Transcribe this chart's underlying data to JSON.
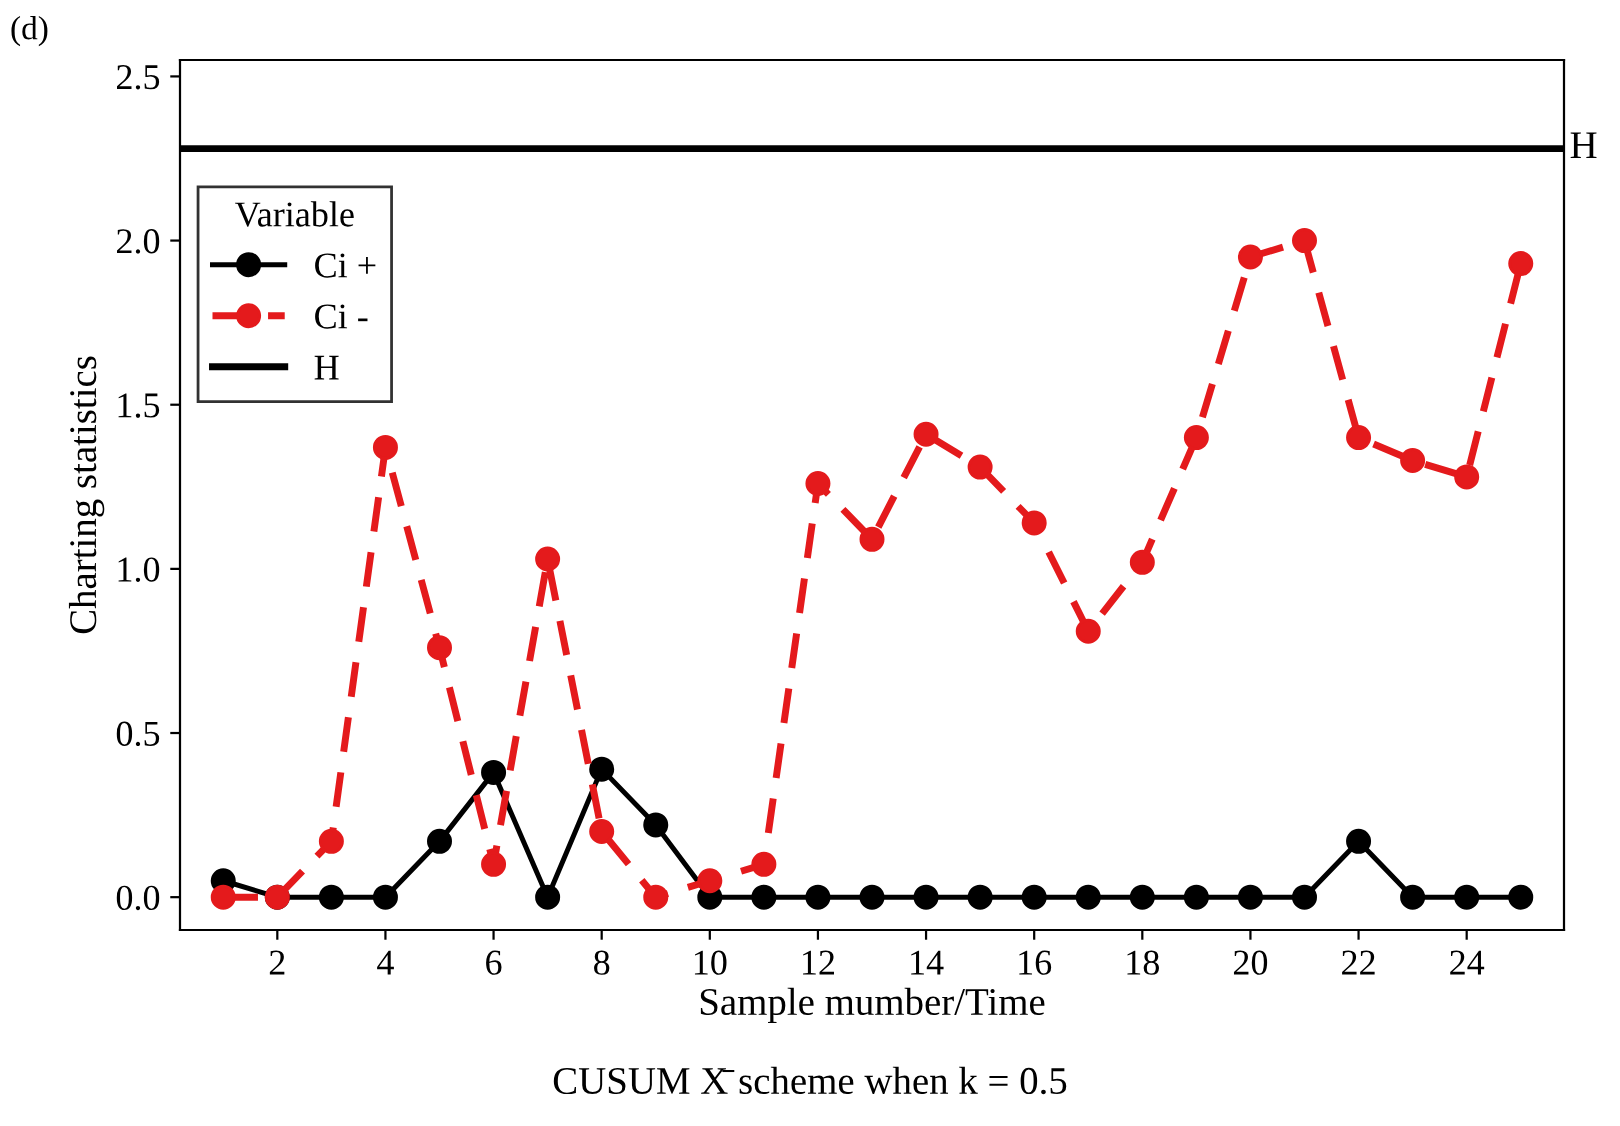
{
  "chart_data": {
    "type": "line",
    "xlabel": "Sample mumber/Time",
    "ylabel": "Charting statistics",
    "legend_title": "Variable",
    "legend": "top left",
    "grid": false,
    "marker": "circle",
    "x": [
      1,
      2,
      3,
      4,
      5,
      6,
      7,
      8,
      9,
      10,
      11,
      12,
      13,
      14,
      15,
      16,
      17,
      18,
      19,
      20,
      21,
      22,
      23,
      24,
      25
    ],
    "xlim": [
      0.2,
      25.8
    ],
    "xticks": [
      2,
      4,
      6,
      8,
      10,
      12,
      14,
      16,
      18,
      20,
      22,
      24
    ],
    "ylim": [
      -0.1,
      2.55
    ],
    "yticks": [
      {
        "value": 0,
        "label": "0.0"
      },
      0.5,
      {
        "value": 1,
        "label": "1.0"
      },
      1.5,
      {
        "value": 2,
        "label": "2.0"
      },
      2.5
    ],
    "series": [
      {
        "name": "Ci +",
        "color": "#000000",
        "line_style": "solid",
        "values": [
          0.05,
          0,
          0,
          0,
          0.17,
          0.38,
          0,
          0.39,
          0.22,
          0,
          0,
          0,
          0,
          0,
          0,
          0,
          0,
          0,
          0,
          0,
          0,
          0.17,
          0,
          0,
          0
        ]
      },
      {
        "name": "Ci -",
        "color": "#e41a1c",
        "line_style": "dashed",
        "values": [
          0,
          0,
          0.17,
          1.37,
          0.76,
          0.1,
          1.03,
          0.2,
          0,
          0.05,
          0.1,
          1.26,
          1.09,
          1.41,
          1.31,
          1.14,
          0.81,
          1.02,
          1.4,
          1.95,
          2.0,
          1.4,
          1.33,
          1.28,
          1.93
        ]
      }
    ],
    "ref_lines": [
      {
        "axis": "y",
        "value": 2.28,
        "label": "H",
        "color": "#000000",
        "line_style": "solid"
      }
    ],
    "annotations": [
      "(d)",
      "CUSUM X̄ scheme when k = 0.5"
    ]
  }
}
